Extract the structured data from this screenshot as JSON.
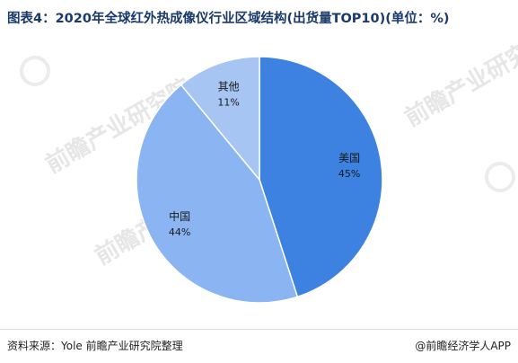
{
  "title": "图表4：2020年全球红外热成像仪行业区域结构(出货量TOP10)(单位：%)",
  "watermark": "前瞻产业研究院",
  "colors": {
    "title": "#1a3a6b",
    "usa": "#3d82e0",
    "china": "#8ab4f2",
    "other": "#a6c5f3"
  },
  "chart_data": {
    "type": "pie",
    "title": "图表4：2020年全球红外热成像仪行业区域结构(出货量TOP10)(单位：%)",
    "slices": [
      {
        "label": "美国",
        "value": 45,
        "value_label": "45%"
      },
      {
        "label": "中国",
        "value": 44,
        "value_label": "44%"
      },
      {
        "label": "其他",
        "value": 11,
        "value_label": "11%"
      }
    ]
  },
  "footer": {
    "source": "资料来源：Yole 前瞻产业研究院整理",
    "brand": "@前瞻经济学人APP"
  }
}
